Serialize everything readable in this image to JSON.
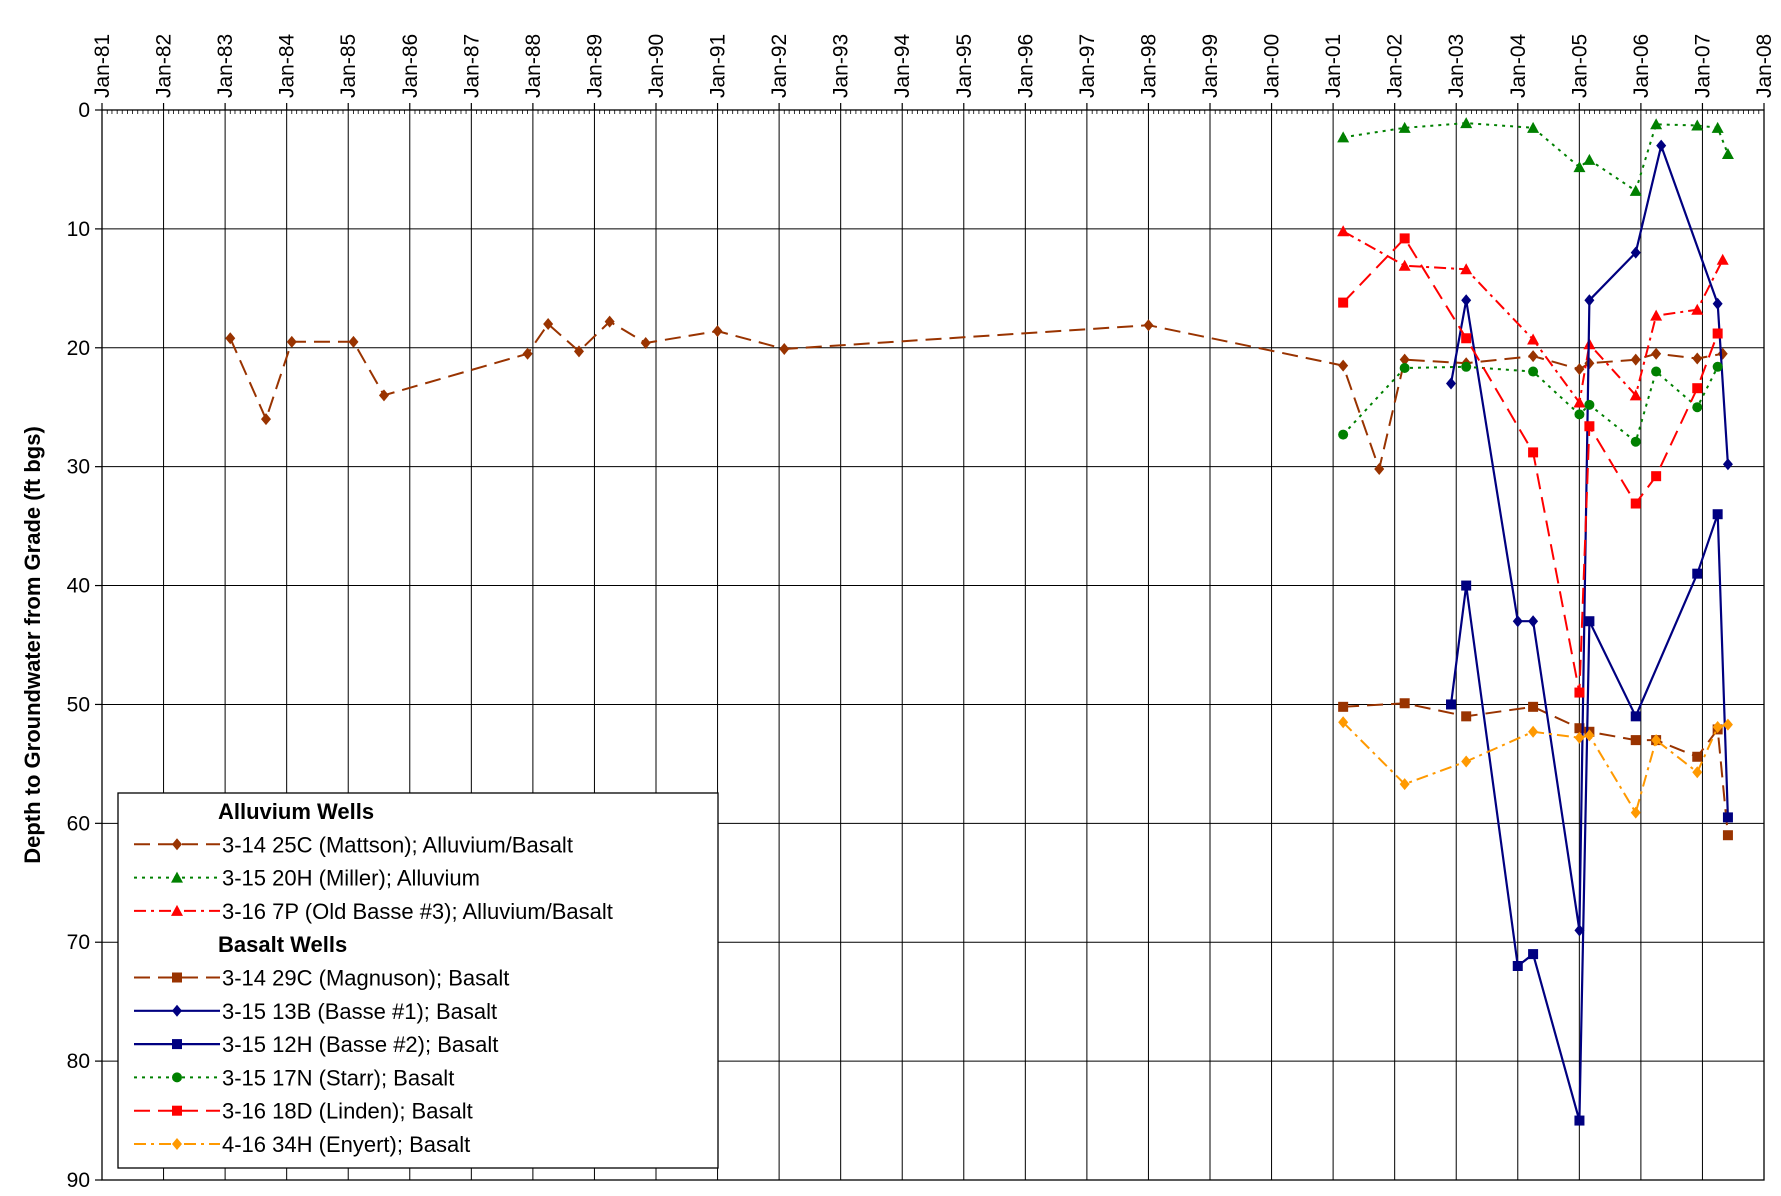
{
  "chart_data": {
    "type": "line",
    "title": "",
    "xlabel": "",
    "ylabel": "Depth to Groundwater from Grade (ft bgs)",
    "x_axis": {
      "type": "date",
      "position": "top",
      "range": [
        "1981-01-01",
        "2008-01-01"
      ],
      "tick_labels": [
        "Jan-81",
        "Jan-82",
        "Jan-83",
        "Jan-84",
        "Jan-85",
        "Jan-86",
        "Jan-87",
        "Jan-88",
        "Jan-89",
        "Jan-90",
        "Jan-91",
        "Jan-92",
        "Jan-93",
        "Jan-94",
        "Jan-95",
        "Jan-96",
        "Jan-97",
        "Jan-98",
        "Jan-99",
        "Jan-00",
        "Jan-01",
        "Jan-02",
        "Jan-03",
        "Jan-04",
        "Jan-05",
        "Jan-06",
        "Jan-07",
        "Jan-08"
      ]
    },
    "y_axis": {
      "range": [
        0,
        90
      ],
      "reversed": true,
      "tick_labels": [
        "0",
        "10",
        "20",
        "30",
        "40",
        "50",
        "60",
        "70",
        "80",
        "90"
      ]
    },
    "grid": true,
    "legend_position": "bottom-left",
    "legend_groups": [
      {
        "heading": "Alluvium Wells",
        "series_indices": [
          0,
          1,
          2
        ]
      },
      {
        "heading": "Basalt Wells",
        "series_indices": [
          3,
          4,
          5,
          6,
          7,
          8
        ]
      }
    ],
    "series": [
      {
        "name": "3-14 25C (Mattson); Alluvium/Basalt",
        "color": "#993300",
        "marker": "diamond",
        "dash": "long-dash",
        "points": [
          [
            "1983-02-01",
            19.2
          ],
          [
            "1983-09-01",
            26.0
          ],
          [
            "1984-02-01",
            19.5
          ],
          [
            "1985-02-01",
            19.5
          ],
          [
            "1985-08-01",
            24.0
          ],
          [
            "1987-12-01",
            20.5
          ],
          [
            "1988-04-01",
            18.0
          ],
          [
            "1988-10-01",
            20.3
          ],
          [
            "1989-04-01",
            17.8
          ],
          [
            "1989-11-01",
            19.6
          ],
          [
            "1991-01-01",
            18.6
          ],
          [
            "1992-02-01",
            20.1
          ],
          [
            "1998-01-01",
            18.1
          ],
          [
            "2001-03-01",
            21.5
          ],
          [
            "2001-10-01",
            30.2
          ],
          [
            "2002-03-01",
            21.0
          ],
          [
            "2003-03-01",
            21.3
          ],
          [
            "2004-04-01",
            20.7
          ],
          [
            "2005-01-01",
            21.8
          ],
          [
            "2005-03-01",
            21.3
          ],
          [
            "2005-12-01",
            21.0
          ],
          [
            "2006-04-01",
            20.5
          ],
          [
            "2006-12-01",
            20.9
          ],
          [
            "2007-05-01",
            20.5
          ]
        ]
      },
      {
        "name": "3-15 20H (Miller); Alluvium",
        "color": "#008000",
        "marker": "triangle",
        "dash": "dot",
        "points": [
          [
            "2001-03-01",
            2.3
          ],
          [
            "2002-03-01",
            1.5
          ],
          [
            "2003-03-01",
            1.1
          ],
          [
            "2004-04-01",
            1.5
          ],
          [
            "2005-01-01",
            4.8
          ],
          [
            "2005-03-01",
            4.2
          ],
          [
            "2005-12-01",
            6.8
          ],
          [
            "2006-04-01",
            1.2
          ],
          [
            "2006-12-01",
            1.3
          ],
          [
            "2007-04-01",
            1.5
          ],
          [
            "2007-06-01",
            3.7
          ]
        ]
      },
      {
        "name": "3-16 7P (Old Basse #3); Alluvium/Basalt",
        "color": "#FF0000",
        "marker": "triangle",
        "dash": "dash-dot",
        "points": [
          [
            "2001-03-01",
            10.2
          ],
          [
            "2002-03-01",
            13.1
          ],
          [
            "2003-03-01",
            13.4
          ],
          [
            "2004-04-01",
            19.3
          ],
          [
            "2005-01-01",
            24.6
          ],
          [
            "2005-03-01",
            19.7
          ],
          [
            "2005-12-01",
            24.0
          ],
          [
            "2006-04-01",
            17.3
          ],
          [
            "2006-12-01",
            16.8
          ],
          [
            "2007-05-01",
            12.6
          ]
        ]
      },
      {
        "name": "3-14 29C (Magnuson); Basalt",
        "color": "#993300",
        "marker": "square",
        "dash": "long-dash",
        "points": [
          [
            "2001-03-01",
            50.2
          ],
          [
            "2002-03-01",
            49.9
          ],
          [
            "2003-03-01",
            51.0
          ],
          [
            "2004-04-01",
            50.2
          ],
          [
            "2005-01-01",
            52.0
          ],
          [
            "2005-03-01",
            52.3
          ],
          [
            "2005-12-01",
            53.0
          ],
          [
            "2006-04-01",
            53.0
          ],
          [
            "2006-12-01",
            54.4
          ],
          [
            "2007-04-01",
            52.1
          ],
          [
            "2007-06-01",
            61.0
          ]
        ]
      },
      {
        "name": "3-15 13B (Basse #1); Basalt",
        "color": "#000080",
        "marker": "diamond",
        "dash": "solid",
        "points": [
          [
            "2002-12-01",
            23.0
          ],
          [
            "2003-03-01",
            16.0
          ],
          [
            "2004-01-01",
            43.0
          ],
          [
            "2004-04-01",
            43.0
          ],
          [
            "2005-01-01",
            69.0
          ],
          [
            "2005-03-01",
            16.0
          ],
          [
            "2005-12-01",
            12.0
          ],
          [
            "2006-05-01",
            3.0
          ],
          [
            "2007-04-01",
            16.3
          ],
          [
            "2007-06-01",
            29.8
          ]
        ]
      },
      {
        "name": "3-15 12H (Basse #2); Basalt",
        "color": "#000080",
        "marker": "square",
        "dash": "solid",
        "points": [
          [
            "2002-12-01",
            50.0
          ],
          [
            "2003-03-01",
            40.0
          ],
          [
            "2004-01-01",
            72.0
          ],
          [
            "2004-04-01",
            71.0
          ],
          [
            "2005-01-01",
            85.0
          ],
          [
            "2005-03-01",
            43.0
          ],
          [
            "2005-12-01",
            51.0
          ],
          [
            "2006-12-01",
            39.0
          ],
          [
            "2007-04-01",
            34.0
          ],
          [
            "2007-06-01",
            59.5
          ]
        ]
      },
      {
        "name": "3-15 17N (Starr); Basalt",
        "color": "#008000",
        "marker": "circle",
        "dash": "dot",
        "points": [
          [
            "2001-03-01",
            27.3
          ],
          [
            "2002-03-01",
            21.7
          ],
          [
            "2003-03-01",
            21.6
          ],
          [
            "2004-04-01",
            22.0
          ],
          [
            "2005-01-01",
            25.6
          ],
          [
            "2005-03-01",
            24.8
          ],
          [
            "2005-12-01",
            27.9
          ],
          [
            "2006-04-01",
            22.0
          ],
          [
            "2006-12-01",
            25.0
          ],
          [
            "2007-04-01",
            21.6
          ]
        ]
      },
      {
        "name": "3-16 18D (Linden); Basalt",
        "color": "#FF0000",
        "marker": "square",
        "dash": "long-dash",
        "points": [
          [
            "2001-03-01",
            16.2
          ],
          [
            "2002-03-01",
            10.8
          ],
          [
            "2003-03-01",
            19.2
          ],
          [
            "2004-04-01",
            28.8
          ],
          [
            "2005-01-01",
            49.0
          ],
          [
            "2005-03-01",
            26.6
          ],
          [
            "2005-12-01",
            33.1
          ],
          [
            "2006-04-01",
            30.8
          ],
          [
            "2006-12-01",
            23.4
          ],
          [
            "2007-04-01",
            18.8
          ]
        ]
      },
      {
        "name": "4-16 34H (Enyert); Basalt",
        "color": "#FF9900",
        "marker": "diamond",
        "dash": "dash-dot",
        "points": [
          [
            "2001-03-01",
            51.5
          ],
          [
            "2002-03-01",
            56.7
          ],
          [
            "2003-03-01",
            54.8
          ],
          [
            "2004-04-01",
            52.3
          ],
          [
            "2005-01-01",
            52.8
          ],
          [
            "2005-03-01",
            52.6
          ],
          [
            "2005-12-01",
            59.1
          ],
          [
            "2006-04-01",
            53.0
          ],
          [
            "2006-12-01",
            55.7
          ],
          [
            "2007-04-01",
            51.9
          ],
          [
            "2007-06-01",
            51.7
          ]
        ]
      }
    ]
  }
}
